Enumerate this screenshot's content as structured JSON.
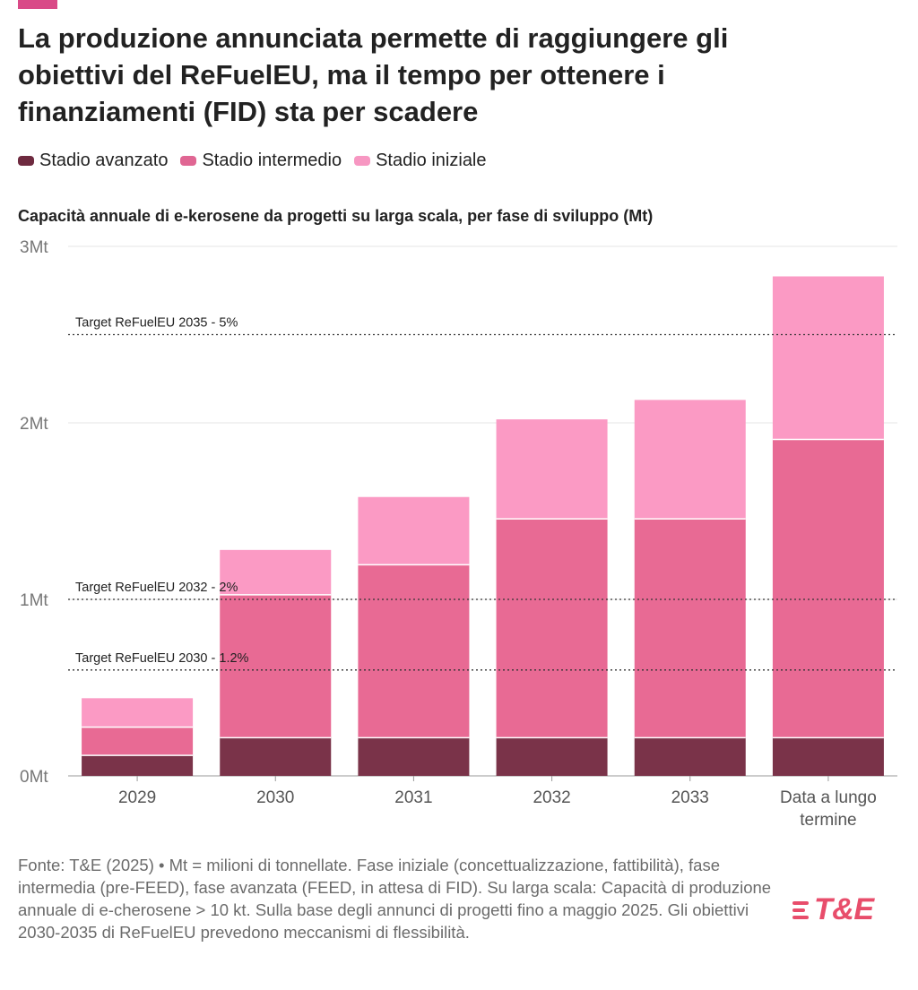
{
  "title": "La produzione annunciata permette di raggiungere gli obiettivi del ReFuelEU, ma il tempo per ottenere i finanziamenti (FID) sta per scadere",
  "subtitle": "Capacità annuale di e-kerosene da progetti su larga scala, per fase di sviluppo (Mt)",
  "legend": [
    {
      "label": "Stadio avanzato",
      "color": "#6e2a3f"
    },
    {
      "label": "Stadio intermedio",
      "color": "#e06693"
    },
    {
      "label": "Stadio iniziale",
      "color": "#f797c2"
    }
  ],
  "chart_data": {
    "type": "bar",
    "stacked": true,
    "categories": [
      "2029",
      "2030",
      "2031",
      "2032",
      "2033",
      "Data a lungo termine"
    ],
    "series": [
      {
        "name": "Stadio avanzato",
        "color": "#7a3349",
        "values": [
          0.12,
          0.22,
          0.22,
          0.22,
          0.22,
          0.22
        ]
      },
      {
        "name": "Stadio intermedio",
        "color": "#e86a94",
        "values": [
          0.16,
          0.81,
          0.98,
          1.24,
          1.24,
          1.69
        ]
      },
      {
        "name": "Stadio iniziale",
        "color": "#fb9ac4",
        "values": [
          0.16,
          0.25,
          0.38,
          0.56,
          0.67,
          0.92
        ]
      }
    ],
    "ylim": [
      0,
      3
    ],
    "y_ticks": [
      {
        "value": 0,
        "label": "0Mt"
      },
      {
        "value": 1,
        "label": "1Mt"
      },
      {
        "value": 2,
        "label": "2Mt"
      },
      {
        "value": 3,
        "label": "3Mt"
      }
    ],
    "grid": true,
    "annotations": [
      {
        "label": "Target ReFuelEU 2035 - 5%",
        "value": 2.5
      },
      {
        "label": "Target ReFuelEU 2032 - 2%",
        "value": 1.0
      },
      {
        "label": "Target ReFuelEU 2030 - 1.2%",
        "value": 0.6
      }
    ],
    "xlabel": "",
    "ylabel": ""
  },
  "footnote": "Fonte: T&E (2025) • Mt = milioni di tonnellate. Fase iniziale (concettualizzazione, fattibilità), fase intermedia (pre-FEED), fase avanzata (FEED, in attesa di FID). Su larga scala: Capacità di produzione annuale di e-cherosene > 10 kt. Sulla base degli annunci di progetti fino a maggio 2025. Gli obiettivi 2030-2035 di ReFuelEU prevedono meccanismi di flessibilità.",
  "logo": {
    "text": "T&E",
    "color": "#e84d6b"
  }
}
